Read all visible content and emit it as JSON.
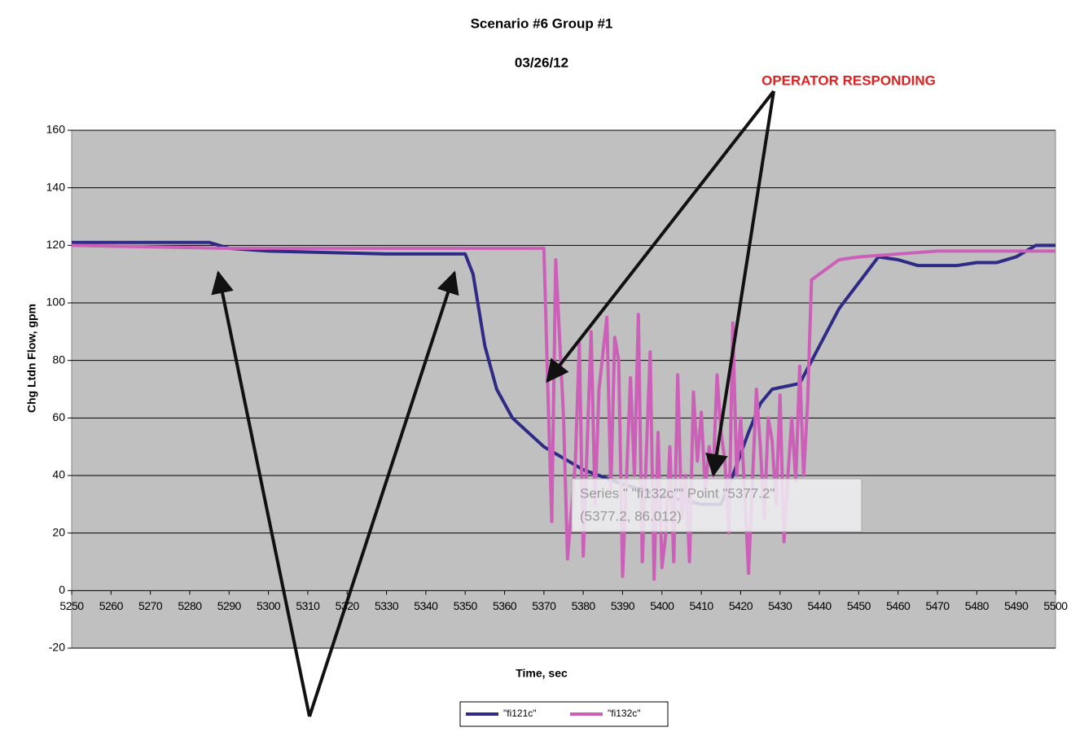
{
  "chart_data": {
    "type": "line",
    "title": "Scenario #6 Group #1",
    "subtitle": "03/26/12",
    "x_label": "Time, sec",
    "y_label": "Chg Ltdn Flow, gpm",
    "annotations": [
      "OPERATOR RESPONDING"
    ],
    "tooltip": [
      "Series \" \"fi132c\"\" Point \"5377.2\"",
      "(5377.2, 86.012)"
    ],
    "xlim": [
      5250,
      5500
    ],
    "xticks": [
      5250,
      5260,
      5270,
      5280,
      5290,
      5300,
      5310,
      5320,
      5330,
      5340,
      5350,
      5360,
      5370,
      5380,
      5390,
      5400,
      5410,
      5420,
      5430,
      5440,
      5450,
      5460,
      5470,
      5480,
      5490,
      5500
    ],
    "ylim": [
      -20,
      160
    ],
    "yticks": [
      -20,
      0,
      20,
      40,
      60,
      80,
      100,
      120,
      140,
      160
    ],
    "grid": true,
    "legend": "bottom",
    "series": [
      {
        "name": "\"fi121c\"",
        "color": "#2e2a86",
        "x": [
          5250,
          5285,
          5290,
          5300,
          5330,
          5340,
          5350,
          5352,
          5355,
          5358,
          5362,
          5370,
          5380,
          5390,
          5400,
          5410,
          5415,
          5418,
          5422,
          5425,
          5428,
          5435,
          5440,
          5445,
          5450,
          5455,
          5460,
          5465,
          5475,
          5480,
          5485,
          5490,
          5495,
          5500
        ],
        "values": [
          121,
          121,
          119,
          118,
          117,
          117,
          117,
          110,
          85,
          70,
          60,
          50,
          42,
          37,
          33,
          30,
          30,
          40,
          55,
          65,
          70,
          72,
          85,
          98,
          107,
          116,
          115,
          113,
          113,
          114,
          114,
          116,
          120,
          120
        ]
      },
      {
        "name": "\"fi132c\"",
        "color": "#cc5fb8",
        "x": [
          5250,
          5288,
          5370,
          5371,
          5372,
          5373,
          5375,
          5376,
          5378,
          5379,
          5380,
          5382,
          5383,
          5384,
          5386,
          5387,
          5388,
          5389,
          5390,
          5392,
          5393,
          5394,
          5395,
          5397,
          5398,
          5399,
          5400,
          5401,
          5402,
          5403,
          5404,
          5405,
          5406,
          5407,
          5408,
          5409,
          5410,
          5411,
          5412,
          5413,
          5414,
          5415,
          5416,
          5417,
          5418,
          5419,
          5420,
          5421,
          5422,
          5424,
          5425,
          5426,
          5427,
          5428,
          5429,
          5430,
          5431,
          5432,
          5433,
          5434,
          5435,
          5436,
          5437,
          5438,
          5440,
          5445,
          5450,
          5460,
          5470,
          5480,
          5490,
          5500
        ],
        "values": [
          120,
          119,
          119,
          70,
          24,
          115,
          60,
          11,
          45,
          86,
          12,
          90,
          30,
          70,
          95,
          35,
          88,
          80,
          5,
          74,
          40,
          96,
          10,
          83,
          4,
          55,
          8,
          20,
          50,
          10,
          75,
          25,
          40,
          10,
          69,
          45,
          62,
          35,
          50,
          40,
          75,
          55,
          45,
          20,
          93,
          40,
          60,
          35,
          6,
          70,
          50,
          25,
          60,
          52,
          30,
          68,
          17,
          40,
          60,
          38,
          78,
          40,
          65,
          108,
          110,
          115,
          116,
          117,
          118,
          118,
          118,
          118
        ]
      }
    ]
  }
}
